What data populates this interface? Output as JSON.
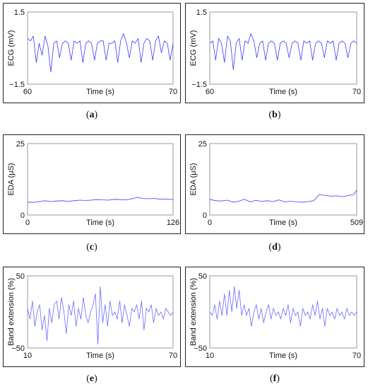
{
  "chart_data": [
    {
      "id": "a",
      "caption_letter": "a",
      "type": "line",
      "xlabel": "Time (s)",
      "ylabel": "ECG (mV)",
      "xlim": [
        60,
        70
      ],
      "ylim": [
        -1.5,
        1.5
      ],
      "xticks": [
        "60",
        "70"
      ],
      "yticks": [
        "1.5",
        "−1.5"
      ],
      "series": [
        {
          "color": "#3a3aff",
          "x": [
            60.0,
            60.2,
            60.4,
            60.6,
            60.8,
            61.0,
            61.2,
            61.4,
            61.6,
            61.8,
            62.0,
            62.2,
            62.4,
            62.6,
            62.8,
            63.0,
            63.2,
            63.4,
            63.6,
            63.8,
            64.0,
            64.2,
            64.4,
            64.6,
            64.8,
            65.0,
            65.2,
            65.4,
            65.6,
            65.8,
            66.0,
            66.2,
            66.4,
            66.6,
            66.8,
            67.0,
            67.2,
            67.4,
            67.6,
            67.8,
            68.0,
            68.2,
            68.4,
            68.6,
            68.8,
            69.0,
            69.2,
            69.4,
            69.6,
            69.8,
            70.0
          ],
          "y": [
            0.4,
            0.3,
            0.5,
            -0.6,
            0.2,
            -0.3,
            0.5,
            0.1,
            -1.0,
            0.2,
            0.3,
            -0.4,
            0.2,
            0.3,
            0.2,
            -0.5,
            0.3,
            0.2,
            0.3,
            -0.6,
            0.2,
            0.3,
            0.2,
            -0.5,
            0.2,
            0.3,
            0.3,
            -0.5,
            0.2,
            0.2,
            0.3,
            -0.6,
            0.3,
            0.6,
            0.2,
            -0.4,
            0.3,
            0.2,
            0.4,
            -0.6,
            0.2,
            0.4,
            0.3,
            -0.5,
            0.3,
            0.5,
            -0.2,
            0.3,
            0.2,
            -0.5,
            0.2
          ]
        }
      ]
    },
    {
      "id": "b",
      "caption_letter": "b",
      "type": "line",
      "xlabel": "Time (s)",
      "ylabel": "ECG (mV)",
      "xlim": [
        60,
        70
      ],
      "ylim": [
        -1.5,
        1.5
      ],
      "xticks": [
        "60",
        "70"
      ],
      "yticks": [
        "1.5",
        "−1.5"
      ],
      "series": [
        {
          "color": "#3a3aff",
          "x": [
            60.0,
            60.2,
            60.4,
            60.6,
            60.8,
            61.0,
            61.2,
            61.4,
            61.6,
            61.8,
            62.0,
            62.2,
            62.4,
            62.6,
            62.8,
            63.0,
            63.2,
            63.4,
            63.6,
            63.8,
            64.0,
            64.2,
            64.4,
            64.6,
            64.8,
            65.0,
            65.2,
            65.4,
            65.6,
            65.8,
            66.0,
            66.2,
            66.4,
            66.6,
            66.8,
            67.0,
            67.2,
            67.4,
            67.6,
            67.8,
            68.0,
            68.2,
            68.4,
            68.6,
            68.8,
            69.0,
            69.2,
            69.4,
            69.6,
            69.8,
            70.0
          ],
          "y": [
            0.2,
            0.3,
            -0.5,
            0.4,
            0.2,
            -0.6,
            0.5,
            0.3,
            -0.9,
            0.2,
            0.4,
            -0.5,
            0.3,
            0.2,
            0.6,
            0.3,
            -0.4,
            0.2,
            0.3,
            -0.5,
            0.2,
            0.3,
            0.2,
            -0.5,
            0.2,
            0.3,
            0.2,
            -0.4,
            0.2,
            0.3,
            0.2,
            -0.5,
            0.3,
            0.2,
            0.3,
            -0.5,
            0.2,
            0.3,
            0.2,
            -0.4,
            0.3,
            0.2,
            0.3,
            -0.5,
            0.2,
            0.3,
            0.2,
            -0.4,
            0.2,
            0.3,
            0.2
          ]
        }
      ]
    },
    {
      "id": "c",
      "caption_letter": "c",
      "type": "line",
      "xlabel": "Time (s)",
      "ylabel": "EDA (μS)",
      "xlim": [
        0,
        126
      ],
      "ylim": [
        0,
        25
      ],
      "xticks": [
        "0",
        "126"
      ],
      "yticks": [
        "25",
        "0"
      ],
      "series": [
        {
          "color": "#3a3aff",
          "x": [
            0,
            5,
            10,
            15,
            20,
            25,
            30,
            35,
            40,
            45,
            50,
            55,
            60,
            65,
            70,
            75,
            80,
            85,
            90,
            95,
            100,
            105,
            110,
            115,
            120,
            126
          ],
          "y": [
            4.5,
            4.4,
            4.7,
            5.0,
            4.7,
            4.9,
            5.0,
            4.8,
            5.0,
            5.2,
            5.1,
            5.2,
            5.4,
            5.3,
            5.2,
            5.5,
            5.4,
            5.3,
            5.6,
            6.2,
            5.8,
            5.7,
            5.8,
            5.5,
            5.6,
            5.4
          ]
        }
      ]
    },
    {
      "id": "d",
      "caption_letter": "d",
      "type": "line",
      "xlabel": "Time (s)",
      "ylabel": "EDA (μS)",
      "xlim": [
        0,
        509
      ],
      "ylim": [
        0,
        25
      ],
      "xticks": [
        "0",
        "509"
      ],
      "yticks": [
        "25",
        "0"
      ],
      "series": [
        {
          "color": "#3a3aff",
          "x": [
            0,
            20,
            40,
            60,
            80,
            100,
            120,
            140,
            160,
            180,
            200,
            220,
            240,
            260,
            280,
            300,
            320,
            340,
            360,
            380,
            400,
            420,
            440,
            460,
            480,
            500,
            509
          ],
          "y": [
            5.5,
            5.0,
            4.9,
            5.2,
            4.5,
            4.8,
            5.5,
            4.6,
            5.1,
            4.8,
            5.0,
            4.7,
            5.3,
            4.6,
            4.8,
            4.6,
            4.5,
            4.7,
            5.0,
            7.2,
            6.8,
            6.6,
            6.7,
            6.4,
            6.8,
            7.2,
            8.8
          ]
        }
      ]
    },
    {
      "id": "e",
      "caption_letter": "e",
      "type": "line",
      "xlabel": "Time (s)",
      "ylabel": "Band extension (%)",
      "xlim": [
        10,
        70
      ],
      "ylim": [
        -50,
        50
      ],
      "xticks": [
        "10",
        "70"
      ],
      "yticks": [
        "50",
        "−50"
      ],
      "series": [
        {
          "color": "#6a6aff",
          "x": [
            10,
            11,
            12,
            13,
            14,
            15,
            16,
            17,
            18,
            19,
            20,
            21,
            22,
            23,
            24,
            25,
            26,
            27,
            28,
            29,
            30,
            31,
            32,
            33,
            34,
            35,
            36,
            37,
            38,
            39,
            40,
            41,
            42,
            43,
            44,
            45,
            46,
            47,
            48,
            49,
            50,
            51,
            52,
            53,
            54,
            55,
            56,
            57,
            58,
            59,
            60,
            61,
            62,
            63,
            64,
            65,
            66,
            67,
            68,
            69,
            70
          ],
          "y": [
            5,
            -10,
            15,
            -20,
            0,
            10,
            -25,
            -5,
            -40,
            5,
            -15,
            10,
            15,
            -10,
            20,
            0,
            -30,
            10,
            -5,
            15,
            -20,
            5,
            -10,
            20,
            -5,
            -15,
            0,
            10,
            25,
            -45,
            35,
            -15,
            10,
            -20,
            15,
            -5,
            0,
            -10,
            15,
            -15,
            10,
            -5,
            -20,
            5,
            0,
            10,
            -10,
            15,
            -25,
            5,
            0,
            10,
            -15,
            5,
            -5,
            0,
            -10,
            5,
            0,
            -5,
            0
          ]
        }
      ]
    },
    {
      "id": "f",
      "caption_letter": "f",
      "type": "line",
      "xlabel": "Time (s)",
      "ylabel": "Band extension (%)",
      "xlim": [
        10,
        70
      ],
      "ylim": [
        -50,
        50
      ],
      "xticks": [
        "10",
        "70"
      ],
      "yticks": [
        "50",
        "−50"
      ],
      "series": [
        {
          "color": "#6a6aff",
          "x": [
            10,
            11,
            12,
            13,
            14,
            15,
            16,
            17,
            18,
            19,
            20,
            21,
            22,
            23,
            24,
            25,
            26,
            27,
            28,
            29,
            30,
            31,
            32,
            33,
            34,
            35,
            36,
            37,
            38,
            39,
            40,
            41,
            42,
            43,
            44,
            45,
            46,
            47,
            48,
            49,
            50,
            51,
            52,
            53,
            54,
            55,
            56,
            57,
            58,
            59,
            60,
            61,
            62,
            63,
            64,
            65,
            66,
            67,
            68,
            69,
            70
          ],
          "y": [
            0,
            -5,
            10,
            -10,
            15,
            -5,
            25,
            -5,
            30,
            0,
            35,
            5,
            30,
            -5,
            10,
            -5,
            5,
            -20,
            0,
            10,
            -10,
            5,
            -15,
            0,
            10,
            -10,
            5,
            -5,
            0,
            -10,
            5,
            -5,
            10,
            -15,
            5,
            -5,
            0,
            -20,
            5,
            -5,
            0,
            -10,
            10,
            -5,
            15,
            -10,
            5,
            -20,
            5,
            -5,
            0,
            -10,
            5,
            -5,
            0,
            -10,
            5,
            -5,
            0,
            -5,
            0
          ]
        }
      ]
    }
  ],
  "captions": {
    "open": "(",
    "close": ")"
  }
}
